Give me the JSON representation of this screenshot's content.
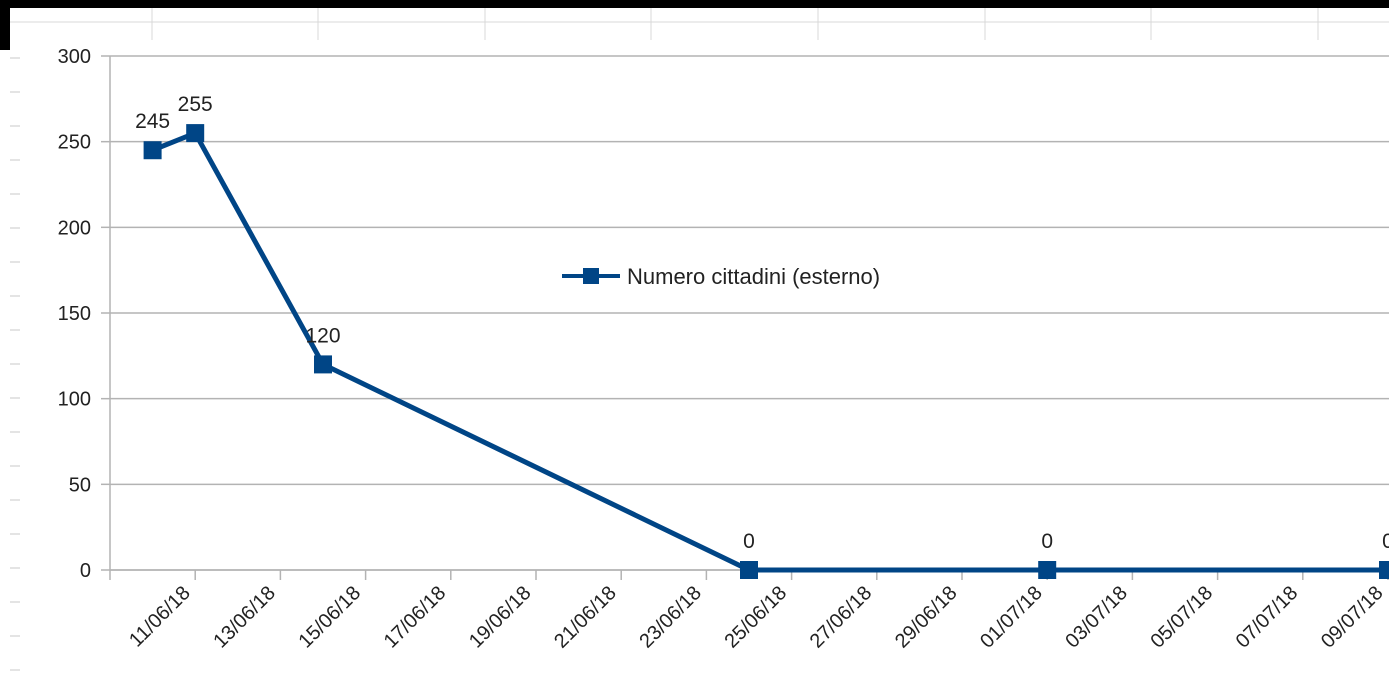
{
  "chart_data": {
    "type": "line",
    "title": "",
    "xlabel": "",
    "ylabel": "",
    "ylim": [
      0,
      300
    ],
    "yticks": [
      0,
      50,
      100,
      150,
      200,
      250,
      300
    ],
    "xlim": [
      "2018-06-10",
      "2018-07-11"
    ],
    "xtick_labels": [
      "11/06/18",
      "13/06/18",
      "15/06/18",
      "17/06/18",
      "19/06/18",
      "21/06/18",
      "23/06/18",
      "25/06/18",
      "27/06/18",
      "29/06/18",
      "01/07/18",
      "03/07/18",
      "05/07/18",
      "07/07/18",
      "09/07/18"
    ],
    "grid": "horizontal",
    "legend_position": "center-right",
    "series": [
      {
        "name": "Numero cittadini (esterno)",
        "color": "#004586",
        "marker": "square",
        "points": [
          {
            "date": "2018-06-11",
            "value": 245,
            "label": "245"
          },
          {
            "date": "2018-06-12",
            "value": 255,
            "label": "255"
          },
          {
            "date": "2018-06-15",
            "value": 120,
            "label": "120"
          },
          {
            "date": "2018-06-25",
            "value": 0,
            "label": "0"
          },
          {
            "date": "2018-07-02",
            "value": 0,
            "label": "0"
          },
          {
            "date": "2018-07-10",
            "value": 0,
            "label": "0"
          }
        ]
      }
    ]
  }
}
